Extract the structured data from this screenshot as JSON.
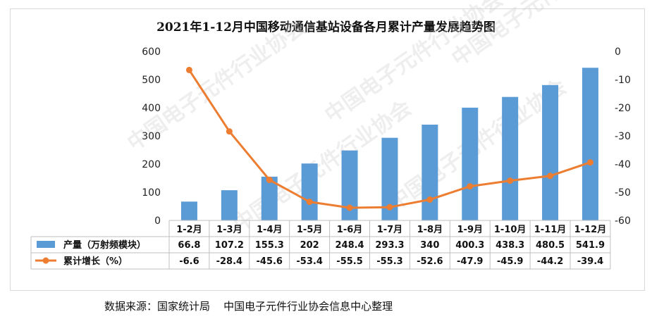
{
  "chart_data": {
    "type": "bar",
    "title": "2021年1-12月中国移动通信基站设备各月累计产量发展趋势图",
    "categories": [
      "1-2月",
      "1-3月",
      "1-4月",
      "1-5月",
      "1-6月",
      "1-7月",
      "1-8月",
      "1-9月",
      "1-10月",
      "1-11月",
      "1-12月"
    ],
    "series": [
      {
        "name": "产量（万射频模块）",
        "type": "bar",
        "axis": "left",
        "color": "#5b9bd5",
        "values": [
          66.8,
          107.2,
          155.3,
          202,
          248.4,
          293.3,
          340,
          400.3,
          438.3,
          480.5,
          541.9
        ]
      },
      {
        "name": "累计增长（%）",
        "type": "line",
        "axis": "right",
        "color": "#ed7d31",
        "values": [
          -6.6,
          -28.4,
          -45.6,
          -53.4,
          -55.5,
          -55.3,
          -52.6,
          -47.9,
          -45.9,
          -44.2,
          -39.4
        ]
      }
    ],
    "y_left": {
      "range": [
        0,
        600
      ],
      "ticks": [
        "0",
        "100",
        "200",
        "300",
        "400",
        "500",
        "600"
      ]
    },
    "y_right": {
      "range": [
        -60,
        0
      ],
      "ticks": [
        "0",
        "-10",
        "-20",
        "-30",
        "-40",
        "-50",
        "-60"
      ]
    },
    "data_table": true,
    "grid": false
  },
  "source_note": "数据来源：国家统计局    中国电子元件行业协会信息中心整理",
  "watermark": "中国电子元件行业协会"
}
